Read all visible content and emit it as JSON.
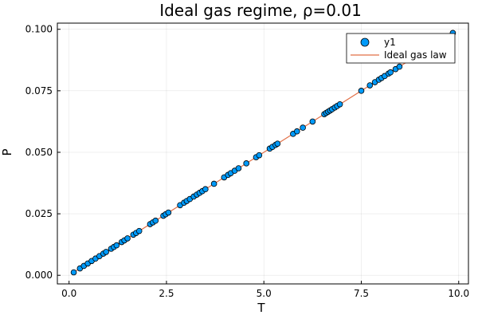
{
  "chart_data": {
    "type": "scatter",
    "title": "Ideal gas regime, ρ=0.01",
    "xlabel": "T",
    "ylabel": "P",
    "xlim": [
      -0.3,
      10.25
    ],
    "ylim": [
      -0.0035,
      0.1025
    ],
    "xticks": [
      0.0,
      2.5,
      5.0,
      7.5,
      10.0
    ],
    "xtick_labels": [
      "0.0",
      "2.5",
      "5.0",
      "7.5",
      "10.0"
    ],
    "yticks": [
      0.0,
      0.025,
      0.05,
      0.075,
      0.1
    ],
    "ytick_labels": [
      "0.000",
      "0.025",
      "0.050",
      "0.075",
      "0.100"
    ],
    "grid": true,
    "legend_position": "top-right",
    "series": [
      {
        "name": "y1",
        "kind": "scatter",
        "color": "#009af9",
        "x": [
          0.12,
          0.28,
          0.38,
          0.48,
          0.58,
          0.68,
          0.78,
          0.88,
          0.95,
          1.08,
          1.15,
          1.22,
          1.35,
          1.42,
          1.5,
          1.65,
          1.72,
          1.8,
          2.08,
          2.15,
          2.22,
          2.42,
          2.48,
          2.55,
          2.85,
          2.95,
          3.02,
          3.1,
          3.2,
          3.28,
          3.35,
          3.42,
          3.5,
          3.72,
          3.98,
          4.08,
          4.15,
          4.25,
          4.35,
          4.55,
          4.8,
          4.88,
          5.15,
          5.22,
          5.3,
          5.35,
          5.75,
          5.85,
          6.0,
          6.25,
          6.55,
          6.6,
          6.65,
          6.7,
          6.75,
          6.82,
          6.88,
          6.95,
          7.5,
          7.72,
          7.85,
          7.95,
          8.02,
          8.1,
          8.2,
          8.25,
          8.38,
          8.48,
          9.85
        ],
        "y": [
          0.0012,
          0.0028,
          0.0038,
          0.0048,
          0.0058,
          0.0068,
          0.0078,
          0.0088,
          0.0095,
          0.0108,
          0.0115,
          0.0122,
          0.0135,
          0.0142,
          0.015,
          0.0165,
          0.0172,
          0.018,
          0.0208,
          0.0215,
          0.0222,
          0.0242,
          0.0248,
          0.0255,
          0.0285,
          0.0295,
          0.0302,
          0.031,
          0.032,
          0.0328,
          0.0335,
          0.0342,
          0.035,
          0.0372,
          0.0398,
          0.0408,
          0.0415,
          0.0425,
          0.0435,
          0.0455,
          0.048,
          0.0488,
          0.0515,
          0.0522,
          0.053,
          0.0535,
          0.0575,
          0.0585,
          0.06,
          0.0625,
          0.0655,
          0.066,
          0.0665,
          0.067,
          0.0675,
          0.0682,
          0.0688,
          0.0695,
          0.075,
          0.0772,
          0.0785,
          0.0795,
          0.0802,
          0.081,
          0.082,
          0.0825,
          0.0838,
          0.0848,
          0.0985
        ]
      },
      {
        "name": "Ideal gas law",
        "kind": "line",
        "color": "#e26f46",
        "x": [
          0.12,
          9.85
        ],
        "y": [
          0.0012,
          0.0985
        ]
      }
    ]
  }
}
